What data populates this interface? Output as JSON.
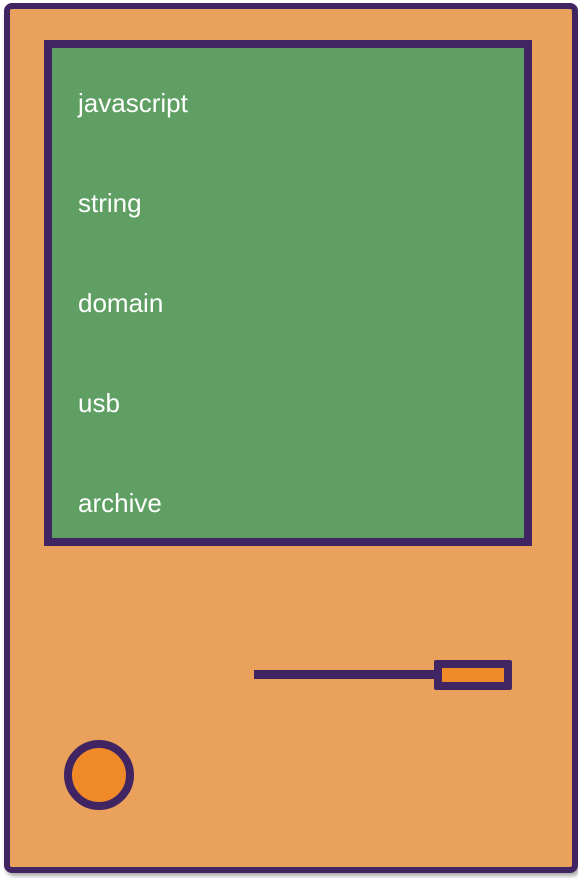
{
  "screen": {
    "items": [
      {
        "label": "javascript"
      },
      {
        "label": "string"
      },
      {
        "label": "domain"
      },
      {
        "label": "usb"
      },
      {
        "label": "archive"
      }
    ]
  },
  "colors": {
    "device_body": "#eaa15b",
    "outline": "#402562",
    "screen": "#609f64",
    "accent": "#f08a29",
    "text": "#ffffff"
  },
  "icons": {
    "slot": "disk-slot-icon",
    "power": "power-button-icon"
  }
}
